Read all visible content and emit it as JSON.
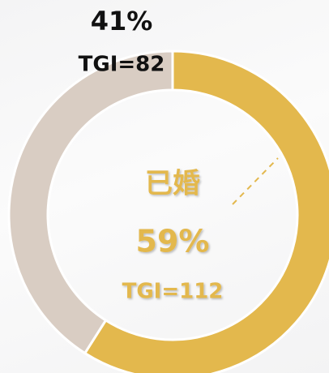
{
  "chart_data": {
    "type": "donut",
    "categories": [
      "已婚",
      null
    ],
    "values": [
      59,
      41
    ],
    "value_labels": [
      "59%",
      "41%"
    ],
    "annotations": [
      "TGI=112",
      "TGI=82"
    ],
    "colors": [
      "#e3b84d",
      "#d9cdc3"
    ]
  }
}
